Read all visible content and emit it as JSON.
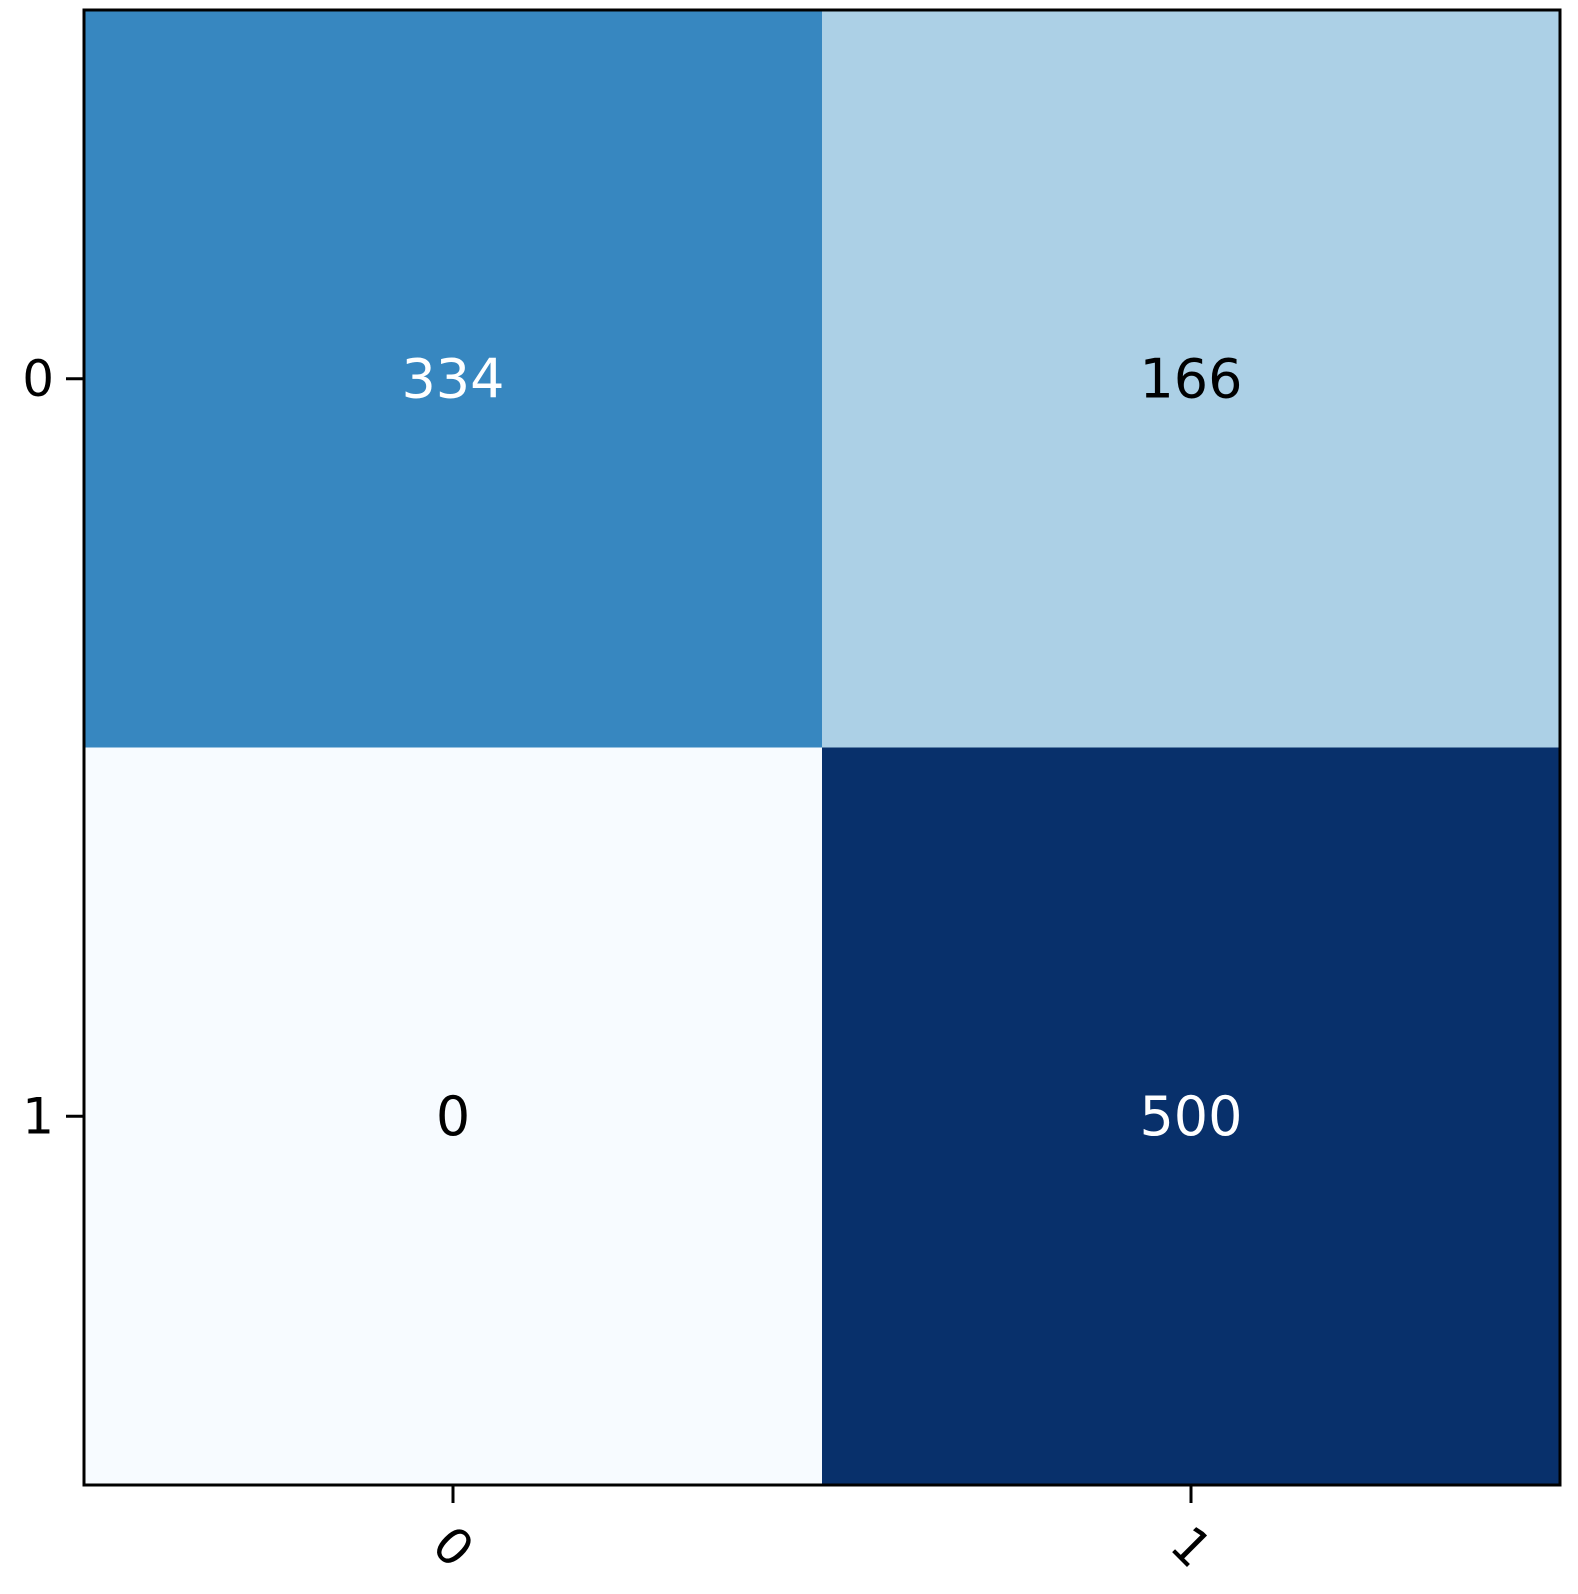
{
  "chart_data": {
    "type": "heatmap",
    "title": "",
    "xlabel": "",
    "ylabel": "",
    "x_tick_labels": [
      "0",
      "1"
    ],
    "y_tick_labels": [
      "0",
      "1"
    ],
    "matrix": [
      [
        334,
        166
      ],
      [
        0,
        500
      ]
    ],
    "value_range": [
      0,
      500
    ],
    "colormap": "Blues",
    "grid": false,
    "x_tick_rotation_deg": 45
  }
}
